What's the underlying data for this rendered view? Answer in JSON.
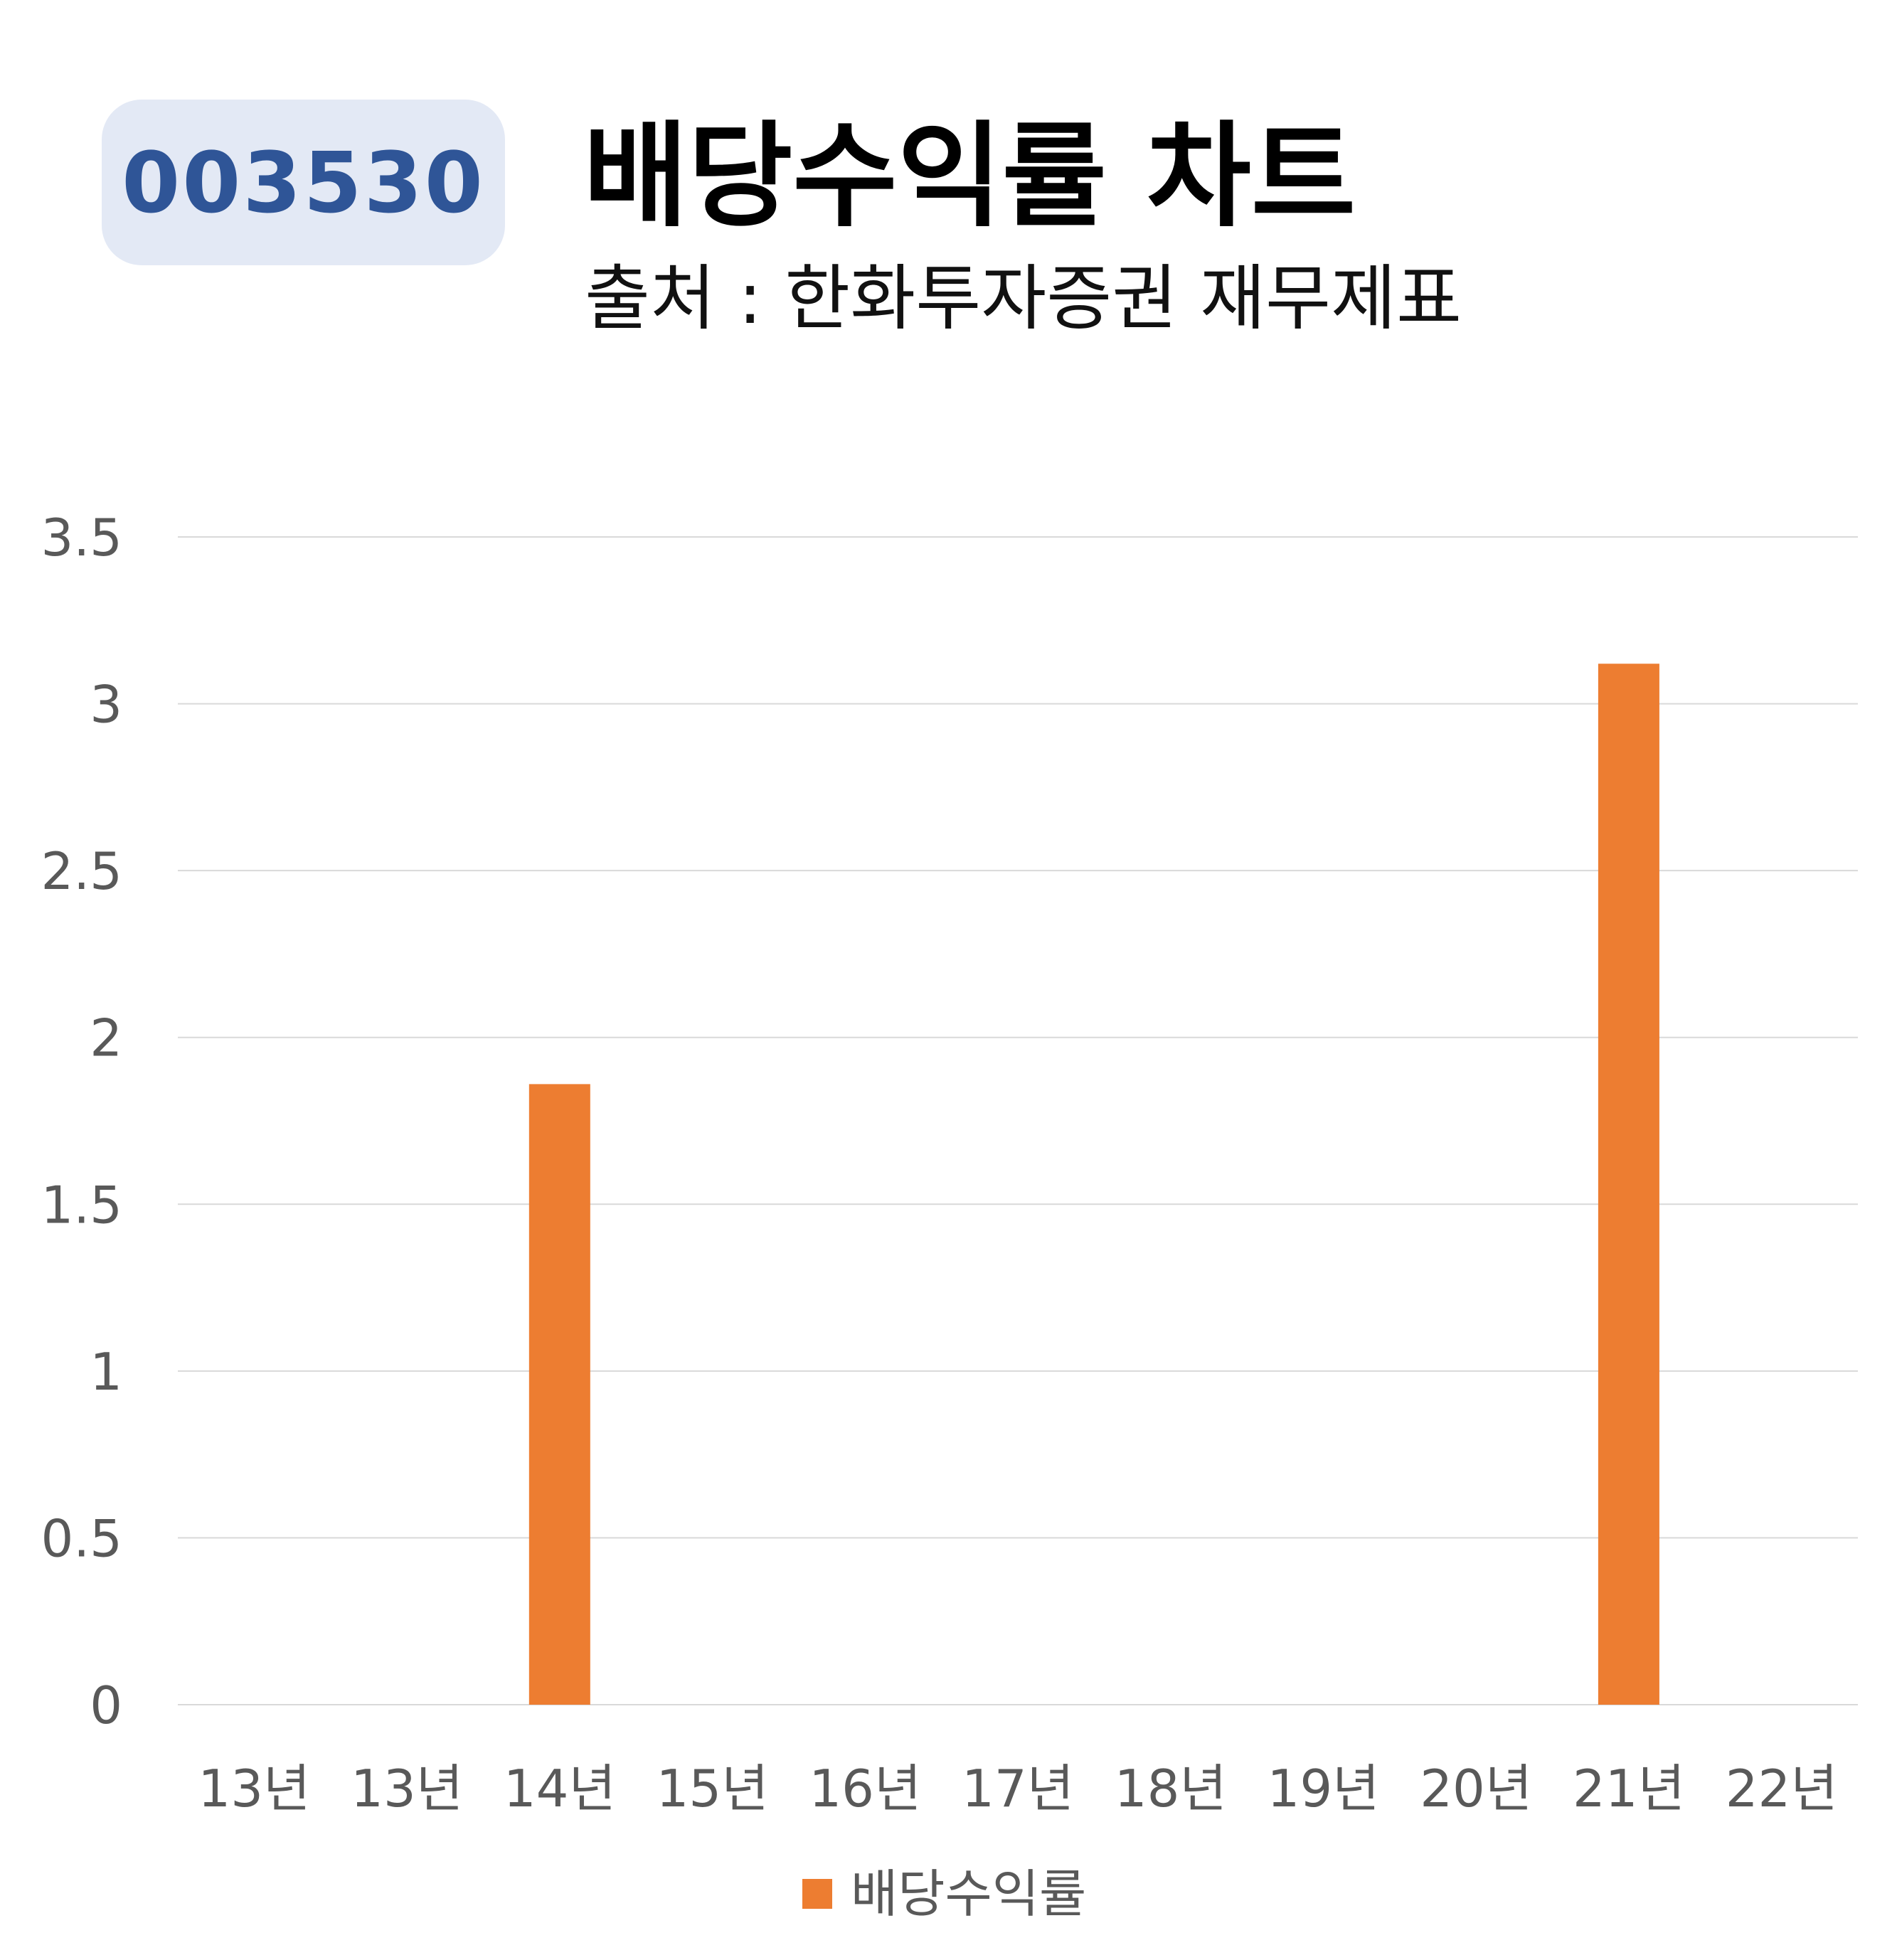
{
  "header": {
    "stock_code": "003530",
    "title": "배당수익률 차트",
    "subtitle": "출처 : 한화투자증권 재무제표"
  },
  "colors": {
    "badge_bg": "#e3e9f5",
    "badge_text": "#2f5597",
    "bar": "#ed7d31",
    "grid": "#d9d9d9",
    "tick_text": "#595959"
  },
  "chart_data": {
    "type": "bar",
    "title": "배당수익률 차트",
    "xlabel": "",
    "ylabel": "",
    "categories": [
      "13년",
      "13년",
      "14년",
      "15년",
      "16년",
      "17년",
      "18년",
      "19년",
      "20년",
      "21년",
      "22년"
    ],
    "series": [
      {
        "name": "배당수익률",
        "values": [
          0,
          0,
          1.86,
          0,
          0,
          0,
          0,
          0,
          0,
          3.12,
          0
        ]
      }
    ],
    "yticks": [
      "0",
      "0.5",
      "1",
      "1.5",
      "2",
      "2.5",
      "3",
      "3.5"
    ],
    "ylim": [
      0,
      3.5
    ],
    "grid": true,
    "legend": "bottom"
  }
}
